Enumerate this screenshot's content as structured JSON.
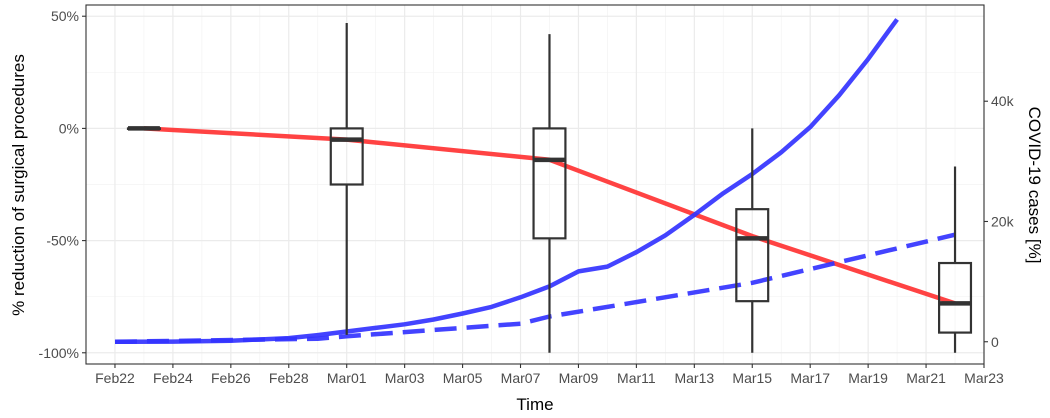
{
  "chart_data": {
    "type": "line",
    "title": "",
    "xlabel": "Time",
    "ylabel": "% reduction of surgical procedures",
    "y2label": "COVID-19 cases [%]",
    "x_axis": {
      "type": "date",
      "range": [
        "2020-02-21",
        "2020-03-23"
      ],
      "tick_dates": [
        "2020-02-22",
        "2020-02-24",
        "2020-02-26",
        "2020-02-28",
        "2020-03-01",
        "2020-03-03",
        "2020-03-05",
        "2020-03-07",
        "2020-03-09",
        "2020-03-11",
        "2020-03-13",
        "2020-03-15",
        "2020-03-17",
        "2020-03-19",
        "2020-03-21",
        "2020-03-23"
      ],
      "tick_labels": [
        "Feb22",
        "Feb24",
        "Feb26",
        "Feb28",
        "Mar01",
        "Mar03",
        "Mar05",
        "Mar07",
        "Mar09",
        "Mar11",
        "Mar13",
        "Mar15",
        "Mar17",
        "Mar19",
        "Mar21",
        "Mar23"
      ]
    },
    "y_axis": {
      "ylim": [
        -105,
        55
      ],
      "tick_values": [
        50,
        0,
        -50,
        -100
      ],
      "tick_labels": [
        "50%",
        "0%",
        "-50%",
        "-100%"
      ]
    },
    "y2_axis": {
      "ylim": [
        -3700,
        56000
      ],
      "tick_values": [
        0,
        20000,
        40000
      ],
      "tick_labels": [
        "0",
        "20k",
        "40k"
      ]
    },
    "grid": true,
    "series": [
      {
        "kind": "line",
        "axis": "left",
        "color": "#ff3333",
        "style": "solid",
        "points": [
          [
            "2020-02-23",
            0
          ],
          [
            "2020-03-01",
            -5
          ],
          [
            "2020-03-08",
            -14
          ],
          [
            "2020-03-15",
            -48
          ],
          [
            "2020-03-22",
            -78
          ]
        ]
      },
      {
        "kind": "line",
        "axis": "right",
        "color": "#3333ff",
        "style": "solid",
        "points": [
          [
            "2020-02-22",
            0
          ],
          [
            "2020-02-24",
            20
          ],
          [
            "2020-02-26",
            150
          ],
          [
            "2020-02-28",
            600
          ],
          [
            "2020-02-29",
            1100
          ],
          [
            "2020-03-01",
            1700
          ],
          [
            "2020-03-02",
            2300
          ],
          [
            "2020-03-03",
            2900
          ],
          [
            "2020-03-04",
            3700
          ],
          [
            "2020-03-05",
            4700
          ],
          [
            "2020-03-06",
            5800
          ],
          [
            "2020-03-07",
            7400
          ],
          [
            "2020-03-08",
            9200
          ],
          [
            "2020-03-09",
            11700
          ],
          [
            "2020-03-10",
            12500
          ],
          [
            "2020-03-11",
            14900
          ],
          [
            "2020-03-12",
            17700
          ],
          [
            "2020-03-13",
            21100
          ],
          [
            "2020-03-14",
            24700
          ],
          [
            "2020-03-15",
            27900
          ],
          [
            "2020-03-16",
            31500
          ],
          [
            "2020-03-17",
            35700
          ],
          [
            "2020-03-18",
            41000
          ],
          [
            "2020-03-19",
            47000
          ],
          [
            "2020-03-20",
            53600
          ]
        ]
      },
      {
        "kind": "line",
        "axis": "right",
        "color": "#3333ff",
        "style": "dashed",
        "points": [
          [
            "2020-02-22",
            0
          ],
          [
            "2020-02-29",
            500
          ],
          [
            "2020-03-01",
            900
          ],
          [
            "2020-03-07",
            3000
          ],
          [
            "2020-03-08",
            4200
          ],
          [
            "2020-03-15",
            9800
          ],
          [
            "2020-03-22",
            17800
          ]
        ]
      }
    ],
    "boxplots": [
      {
        "date": "2020-02-23",
        "min": 0,
        "q1": 0,
        "median": 0,
        "q3": 0,
        "max": 0
      },
      {
        "date": "2020-03-01",
        "min": -92,
        "q1": -25,
        "median": -5,
        "q3": 0,
        "max": 47
      },
      {
        "date": "2020-03-08",
        "min": -100,
        "q1": -49,
        "median": -14,
        "q3": 0,
        "max": 42
      },
      {
        "date": "2020-03-15",
        "min": -100,
        "q1": -77,
        "median": -49,
        "q3": -36,
        "max": 0
      },
      {
        "date": "2020-03-22",
        "min": -100,
        "q1": -91,
        "median": -78,
        "q3": -60,
        "max": -17
      }
    ]
  }
}
